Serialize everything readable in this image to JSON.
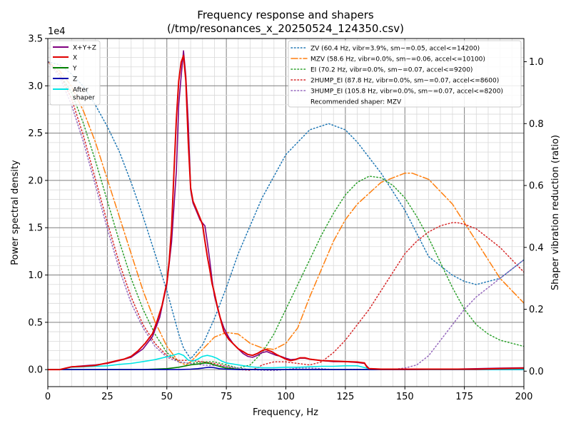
{
  "chart_data": {
    "type": "line",
    "title": "Frequency response and shapers",
    "subtitle": "(/tmp/resonances_x_20250524_124350.csv)",
    "xlabel": "Frequency, Hz",
    "ylabel": "Power spectral density",
    "y2label": "Shaper vibration reduction (ratio)",
    "y_multiplier": "1e4",
    "xlim": [
      0,
      200
    ],
    "ylim": [
      -1800,
      35000
    ],
    "y2lim": [
      -0.05,
      1.075
    ],
    "x_ticks": [
      0,
      25,
      50,
      75,
      100,
      125,
      150,
      175,
      200
    ],
    "y_ticks": [
      0,
      5000,
      10000,
      15000,
      20000,
      25000,
      30000,
      35000
    ],
    "y_tick_labels": [
      "0.0",
      "0.5",
      "1.0",
      "1.5",
      "2.0",
      "2.5",
      "3.0",
      "3.5"
    ],
    "y2_ticks": [
      0.0,
      0.2,
      0.4,
      0.6,
      0.8,
      1.0
    ],
    "y2_tick_labels": [
      "0.0",
      "0.2",
      "0.4",
      "0.6",
      "0.8",
      "1.0"
    ],
    "grid": true,
    "legend_left_placement": "top-left",
    "legend_right_placement": "top-right",
    "recommended_text": "Recommended shaper: MZV",
    "psd_series": [
      {
        "name": "X+Y+Z",
        "color": "#800080",
        "x": [
          0,
          5,
          10,
          15,
          20,
          25,
          30,
          35,
          40,
          44,
          47,
          50,
          52,
          54,
          55,
          56,
          57,
          58,
          59,
          60,
          61,
          62,
          64,
          66,
          67,
          68,
          69,
          70,
          72,
          74,
          76,
          78,
          80,
          82,
          84,
          86,
          88,
          90,
          92,
          94,
          96,
          98,
          100,
          102,
          104,
          106,
          108,
          110,
          115,
          120,
          125,
          130,
          133,
          135,
          140,
          150,
          160,
          170,
          180,
          190,
          200
        ],
        "y": [
          0,
          0,
          300,
          400,
          500,
          650,
          950,
          1300,
          2200,
          3500,
          5500,
          9000,
          13500,
          21000,
          28000,
          31000,
          33700,
          31000,
          26000,
          19000,
          17600,
          17000,
          15800,
          15200,
          13500,
          11600,
          9500,
          7800,
          5800,
          4400,
          3400,
          2700,
          2200,
          1700,
          1400,
          1300,
          1500,
          1800,
          1900,
          1700,
          1500,
          1400,
          1200,
          1050,
          1100,
          1200,
          1200,
          1100,
          950,
          850,
          850,
          750,
          650,
          100,
          50,
          50,
          50,
          50,
          100,
          150,
          200
        ]
      },
      {
        "name": "X",
        "color": "#e00000",
        "x": [
          0,
          5,
          10,
          15,
          20,
          25,
          30,
          32,
          35,
          38,
          41,
          44,
          46,
          48,
          50,
          51,
          52,
          53,
          54,
          55,
          56,
          57,
          58,
          59,
          60,
          61,
          62,
          63,
          64,
          65,
          66,
          67,
          68,
          69,
          70,
          71,
          72,
          73,
          74,
          76,
          78,
          80,
          82,
          84,
          86,
          88,
          90,
          91,
          92,
          94,
          96,
          98,
          100,
          102,
          104,
          106,
          108,
          110,
          115,
          120,
          125,
          130,
          133,
          134,
          135,
          140,
          150,
          160,
          170,
          180,
          190,
          200
        ],
        "y": [
          0,
          0,
          300,
          350,
          450,
          700,
          1000,
          1100,
          1400,
          2000,
          2800,
          3800,
          5200,
          6800,
          9200,
          11500,
          15000,
          21000,
          26500,
          30500,
          32500,
          33200,
          30500,
          24000,
          19200,
          17800,
          17200,
          16600,
          16000,
          15300,
          13600,
          12000,
          10600,
          9100,
          8100,
          6900,
          5900,
          4900,
          4000,
          3200,
          2700,
          2200,
          1900,
          1600,
          1500,
          1700,
          2000,
          2100,
          2100,
          1900,
          1600,
          1350,
          1100,
          950,
          1050,
          1250,
          1250,
          1100,
          950,
          900,
          850,
          800,
          700,
          300,
          100,
          50,
          50,
          50,
          50,
          50,
          100,
          150
        ]
      },
      {
        "name": "Y",
        "color": "#008000",
        "x": [
          0,
          40,
          50,
          55,
          58,
          60,
          62,
          64,
          66,
          68,
          70,
          72,
          75,
          80,
          90,
          100,
          150,
          200
        ],
        "y": [
          0,
          0,
          100,
          250,
          400,
          500,
          560,
          620,
          700,
          650,
          500,
          350,
          150,
          50,
          0,
          0,
          0,
          0
        ]
      },
      {
        "name": "Z",
        "color": "#0000b0",
        "x": [
          0,
          50,
          55,
          60,
          63,
          65,
          66,
          68,
          70,
          72,
          75,
          80,
          100,
          150,
          200
        ],
        "y": [
          0,
          0,
          0,
          50,
          100,
          150,
          200,
          250,
          200,
          100,
          50,
          0,
          0,
          0,
          0
        ]
      },
      {
        "name": "After\nshaper",
        "color": "#00e5e5",
        "x": [
          0,
          5,
          10,
          15,
          20,
          25,
          30,
          35,
          40,
          45,
          50,
          53,
          55,
          57,
          59,
          61,
          63,
          65,
          67,
          69,
          71,
          73,
          75,
          80,
          85,
          90,
          95,
          100,
          105,
          110,
          115,
          120,
          125,
          130,
          135,
          140,
          150,
          160,
          170,
          180,
          190,
          200
        ],
        "y": [
          0,
          0,
          250,
          300,
          350,
          400,
          550,
          650,
          850,
          1050,
          1350,
          1550,
          1700,
          1500,
          1000,
          900,
          1100,
          1400,
          1500,
          1400,
          1200,
          900,
          700,
          500,
          300,
          200,
          200,
          250,
          250,
          300,
          350,
          350,
          400,
          400,
          100,
          50,
          30,
          20,
          20,
          20,
          20,
          20
        ]
      }
    ],
    "shaper_series": [
      {
        "name": "ZV (60.4 Hz, vibr=3.9%, sm~=0.05, accel<=14200)",
        "color": "#1f77b4",
        "dash": "dotted",
        "x": [
          0,
          5,
          10,
          15,
          20,
          25,
          30,
          35,
          40,
          45,
          50,
          55,
          57,
          60,
          65,
          70,
          75,
          80,
          90,
          100,
          110,
          118,
          125,
          130,
          140,
          150,
          160,
          170,
          175,
          180,
          190,
          200
        ],
        "y": [
          1.0,
          0.99,
          0.96,
          0.92,
          0.86,
          0.79,
          0.71,
          0.61,
          0.5,
          0.38,
          0.26,
          0.12,
          0.075,
          0.04,
          0.085,
          0.17,
          0.27,
          0.38,
          0.56,
          0.7,
          0.78,
          0.8,
          0.78,
          0.74,
          0.64,
          0.52,
          0.37,
          0.31,
          0.29,
          0.28,
          0.3,
          0.36
        ]
      },
      {
        "name": "MZV (58.6 Hz, vibr=0.0%, sm~=0.06, accel<=10100)",
        "color": "#ff7f0e",
        "dash": "dashdot",
        "x": [
          0,
          5,
          10,
          15,
          20,
          25,
          30,
          35,
          40,
          45,
          50,
          55,
          58,
          60,
          65,
          70,
          75,
          80,
          85,
          90,
          95,
          100,
          105,
          110,
          115,
          120,
          125,
          130,
          140,
          150,
          153,
          160,
          170,
          180,
          190,
          200
        ],
        "y": [
          1.0,
          0.97,
          0.92,
          0.84,
          0.74,
          0.62,
          0.5,
          0.38,
          0.26,
          0.16,
          0.08,
          0.03,
          0.02,
          0.03,
          0.07,
          0.11,
          0.125,
          0.12,
          0.09,
          0.075,
          0.07,
          0.09,
          0.14,
          0.24,
          0.33,
          0.42,
          0.49,
          0.54,
          0.61,
          0.64,
          0.64,
          0.62,
          0.54,
          0.42,
          0.3,
          0.22
        ]
      },
      {
        "name": "EI (70.2 Hz, vibr=0.0%, sm~=0.07, accel<=9200)",
        "color": "#2ca02c",
        "dash": "dotted",
        "x": [
          0,
          5,
          10,
          15,
          20,
          25,
          30,
          35,
          40,
          45,
          50,
          55,
          60,
          65,
          70,
          75,
          80,
          85,
          90,
          95,
          100,
          105,
          110,
          115,
          120,
          125,
          130,
          135,
          140,
          145,
          150,
          155,
          160,
          165,
          170,
          175,
          180,
          185,
          190,
          200
        ],
        "y": [
          1.0,
          0.96,
          0.9,
          0.8,
          0.68,
          0.55,
          0.42,
          0.3,
          0.2,
          0.12,
          0.06,
          0.03,
          0.025,
          0.03,
          0.03,
          0.02,
          0.01,
          0.02,
          0.06,
          0.12,
          0.2,
          0.28,
          0.36,
          0.44,
          0.51,
          0.57,
          0.61,
          0.63,
          0.625,
          0.6,
          0.56,
          0.5,
          0.43,
          0.35,
          0.27,
          0.2,
          0.15,
          0.12,
          0.1,
          0.08
        ]
      },
      {
        "name": "2HUMP_EI (87.8 Hz, vibr=0.0%, sm~=0.07, accel<=8600)",
        "color": "#d62728",
        "dash": "dotted",
        "x": [
          0,
          5,
          10,
          15,
          20,
          25,
          30,
          35,
          40,
          45,
          50,
          55,
          60,
          65,
          70,
          75,
          80,
          85,
          88,
          90,
          95,
          100,
          105,
          110,
          115,
          120,
          125,
          130,
          135,
          140,
          145,
          150,
          155,
          160,
          165,
          170,
          172,
          175,
          180,
          185,
          190,
          195,
          200
        ],
        "y": [
          1.0,
          0.96,
          0.88,
          0.76,
          0.62,
          0.48,
          0.35,
          0.24,
          0.15,
          0.09,
          0.05,
          0.035,
          0.035,
          0.03,
          0.025,
          0.015,
          0.005,
          0.003,
          0.01,
          0.02,
          0.03,
          0.03,
          0.025,
          0.02,
          0.03,
          0.06,
          0.1,
          0.15,
          0.2,
          0.26,
          0.32,
          0.38,
          0.42,
          0.45,
          0.47,
          0.48,
          0.48,
          0.475,
          0.46,
          0.43,
          0.4,
          0.36,
          0.32
        ]
      },
      {
        "name": "3HUMP_EI (105.8 Hz, vibr=0.0%, sm~=0.07, accel<=8200)",
        "color": "#9467bd",
        "dash": "dotted",
        "x": [
          0,
          5,
          10,
          15,
          20,
          25,
          30,
          35,
          40,
          45,
          50,
          55,
          60,
          65,
          70,
          75,
          80,
          85,
          90,
          95,
          100,
          105,
          110,
          115,
          120,
          125,
          130,
          135,
          140,
          145,
          150,
          155,
          160,
          165,
          170,
          175,
          180,
          185,
          190,
          195,
          200
        ],
        "y": [
          1.0,
          0.95,
          0.86,
          0.74,
          0.6,
          0.46,
          0.33,
          0.22,
          0.14,
          0.08,
          0.045,
          0.03,
          0.025,
          0.02,
          0.018,
          0.015,
          0.01,
          0.005,
          0.003,
          0.002,
          0.005,
          0.01,
          0.01,
          0.008,
          0.005,
          0.005,
          0.006,
          0.006,
          0.005,
          0.006,
          0.01,
          0.02,
          0.05,
          0.1,
          0.15,
          0.2,
          0.24,
          0.27,
          0.3,
          0.33,
          0.36
        ]
      }
    ]
  }
}
